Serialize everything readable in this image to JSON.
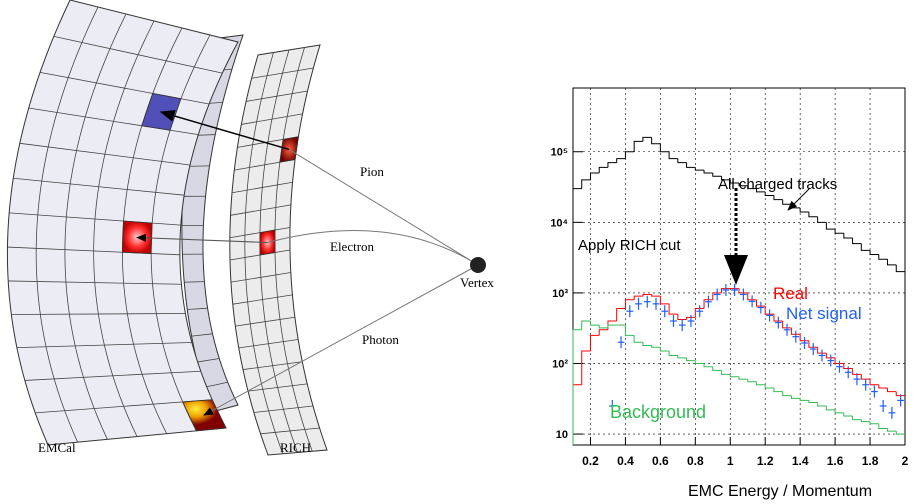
{
  "diagram": {
    "labels": {
      "emcal": "EMCal",
      "rich": "RICH",
      "pion": "Pion",
      "electron": "Electron",
      "photon": "Photon",
      "vertex": "Vertex"
    }
  },
  "chart_data": {
    "type": "histogram",
    "xlabel": "EMC Energy / Momentum",
    "annotation": "Apply RICH cut",
    "bins": [
      0.1,
      0.15,
      0.2,
      0.25,
      0.3,
      0.35,
      0.4,
      0.45,
      0.5,
      0.55,
      0.6,
      0.65,
      0.7,
      0.75,
      0.8,
      0.85,
      0.9,
      0.95,
      1.0,
      1.05,
      1.1,
      1.15,
      1.2,
      1.25,
      1.3,
      1.35,
      1.4,
      1.45,
      1.5,
      1.55,
      1.6,
      1.65,
      1.7,
      1.75,
      1.8,
      1.85,
      1.9,
      1.95,
      2.0
    ],
    "series": [
      {
        "name": "All charged tracks",
        "color": "#000000",
        "style": "step",
        "values": [
          30000,
          40000,
          50000,
          60000,
          70000,
          80000,
          100000,
          140000,
          160000,
          130000,
          100000,
          80000,
          70000,
          60000,
          55000,
          50000,
          45000,
          40000,
          36000,
          33000,
          30000,
          27000,
          24000,
          21000,
          18000,
          16000,
          14000,
          12000,
          10000,
          8000,
          7000,
          6000,
          5000,
          4000,
          3500,
          3000,
          2500,
          2000
        ]
      },
      {
        "name": "Real",
        "color": "#ff0000",
        "style": "step",
        "values": [
          50,
          150,
          250,
          300,
          400,
          600,
          800,
          900,
          950,
          900,
          700,
          500,
          420,
          450,
          600,
          800,
          1000,
          1150,
          1150,
          1000,
          800,
          650,
          500,
          400,
          320,
          260,
          210,
          170,
          140,
          120,
          100,
          85,
          70,
          60,
          50,
          45,
          40,
          35
        ]
      },
      {
        "name": "Net signal",
        "color": "#1f5fff",
        "style": "cross",
        "values": [
          null,
          null,
          null,
          null,
          25,
          200,
          550,
          700,
          750,
          700,
          550,
          400,
          350,
          400,
          550,
          750,
          950,
          1100,
          1100,
          950,
          760,
          620,
          480,
          380,
          300,
          240,
          195,
          160,
          130,
          110,
          90,
          75,
          60,
          50,
          40,
          25,
          20,
          30
        ]
      },
      {
        "name": "Background",
        "color": "#33bb55",
        "style": "step",
        "values": [
          300,
          400,
          350,
          320,
          350,
          350,
          250,
          200,
          180,
          170,
          150,
          130,
          120,
          110,
          100,
          90,
          80,
          70,
          65,
          60,
          55,
          50,
          45,
          40,
          35,
          32,
          30,
          28,
          25,
          22,
          20,
          18,
          16,
          15,
          14,
          12,
          11,
          10
        ]
      }
    ],
    "xlim": [
      0.1,
      2.0
    ],
    "xticks": [
      0.2,
      0.4,
      0.6,
      0.8,
      1,
      1.2,
      1.4,
      1.6,
      1.8,
      2
    ],
    "ylim": [
      7,
      800000
    ],
    "ylog": true,
    "yticks": [
      {
        "value": 10,
        "label": "10"
      },
      {
        "value": 100,
        "label": "10²"
      },
      {
        "value": 1000,
        "label": "10³"
      },
      {
        "value": 10000,
        "label": "10⁴"
      },
      {
        "value": 100000,
        "label": "10⁵"
      }
    ],
    "grid": true
  }
}
